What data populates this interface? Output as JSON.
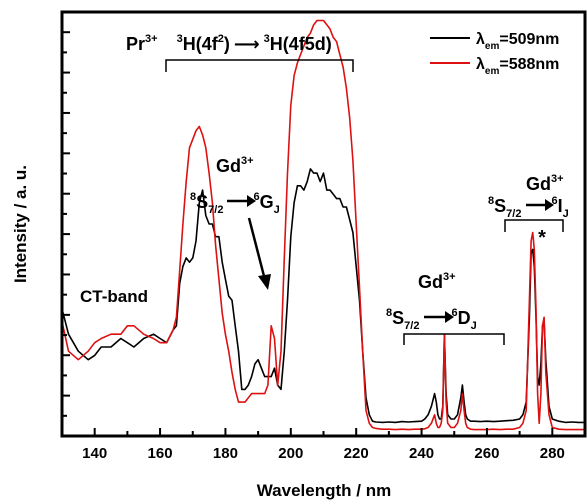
{
  "chart_data": {
    "type": "line",
    "xlabel": "Wavelength / nm",
    "ylabel": "Intensity / a. u.",
    "xlim": [
      130,
      290
    ],
    "ylim": [
      0,
      1
    ],
    "y_tick_labels_shown": false,
    "x_ticks": [
      140,
      160,
      180,
      200,
      220,
      240,
      260,
      280
    ],
    "grid": false,
    "legend_position": "top-right",
    "series": [
      {
        "name": "λem=509nm",
        "color": "#000000",
        "x": [
          130,
          132,
          135,
          138,
          140,
          142,
          145,
          148,
          150,
          152,
          155,
          158,
          160,
          162,
          164,
          165,
          166,
          167,
          168,
          169,
          170,
          171,
          172,
          173,
          174,
          175,
          176,
          177,
          178,
          179,
          180,
          181,
          182,
          183,
          184,
          185,
          186,
          187,
          188,
          189,
          190,
          191,
          192,
          193,
          194,
          195,
          196,
          197,
          198,
          199,
          200,
          201,
          202,
          203,
          204,
          205,
          206,
          207,
          208,
          209,
          210,
          211,
          212,
          213,
          214,
          215,
          216,
          217,
          218,
          219,
          220,
          221,
          222,
          223,
          224,
          225,
          226,
          228,
          230,
          232,
          234,
          236,
          238,
          240,
          241,
          242,
          243,
          244,
          244.5,
          245,
          245.5,
          246,
          246.5,
          247,
          247.5,
          248,
          249,
          250,
          251,
          252,
          252.5,
          253,
          253.5,
          254,
          255,
          256,
          258,
          260,
          262,
          264,
          266,
          268,
          270,
          271,
          272,
          273,
          273.5,
          274,
          274.5,
          275,
          275.5,
          276,
          276.5,
          277,
          277.5,
          278,
          279,
          280,
          282,
          284,
          286,
          288,
          290
        ],
        "values": [
          0.3,
          0.24,
          0.2,
          0.18,
          0.19,
          0.21,
          0.21,
          0.23,
          0.22,
          0.21,
          0.23,
          0.24,
          0.23,
          0.22,
          0.25,
          0.26,
          0.36,
          0.4,
          0.42,
          0.41,
          0.42,
          0.46,
          0.55,
          0.58,
          0.52,
          0.5,
          0.5,
          0.47,
          0.47,
          0.41,
          0.37,
          0.33,
          0.32,
          0.26,
          0.2,
          0.11,
          0.11,
          0.12,
          0.14,
          0.17,
          0.18,
          0.16,
          0.14,
          0.14,
          0.14,
          0.16,
          0.12,
          0.11,
          0.2,
          0.32,
          0.47,
          0.55,
          0.59,
          0.59,
          0.58,
          0.6,
          0.63,
          0.62,
          0.62,
          0.6,
          0.62,
          0.58,
          0.58,
          0.57,
          0.56,
          0.56,
          0.54,
          0.54,
          0.51,
          0.48,
          0.4,
          0.32,
          0.2,
          0.09,
          0.05,
          0.035,
          0.033,
          0.032,
          0.033,
          0.032,
          0.034,
          0.033,
          0.034,
          0.035,
          0.04,
          0.05,
          0.07,
          0.1,
          0.08,
          0.05,
          0.04,
          0.04,
          0.07,
          0.24,
          0.1,
          0.05,
          0.04,
          0.04,
          0.05,
          0.09,
          0.12,
          0.08,
          0.05,
          0.04,
          0.035,
          0.035,
          0.034,
          0.035,
          0.034,
          0.035,
          0.036,
          0.037,
          0.04,
          0.05,
          0.08,
          0.28,
          0.43,
          0.44,
          0.4,
          0.28,
          0.14,
          0.12,
          0.17,
          0.26,
          0.27,
          0.18,
          0.07,
          0.04,
          0.035,
          0.032,
          0.033,
          0.032,
          0.032
        ]
      },
      {
        "name": "λem=588nm",
        "color": "#dd1111",
        "x": [
          130,
          132,
          135,
          138,
          140,
          142,
          145,
          148,
          150,
          152,
          155,
          158,
          160,
          162,
          164,
          165,
          166,
          167,
          168,
          169,
          170,
          171,
          172,
          173,
          174,
          175,
          176,
          177,
          178,
          179,
          180,
          181,
          182,
          183,
          184,
          185,
          186,
          187,
          188,
          189,
          190,
          191,
          192,
          193,
          194,
          195,
          196,
          197,
          198,
          199,
          200,
          201,
          202,
          203,
          204,
          205,
          206,
          207,
          208,
          209,
          210,
          211,
          212,
          213,
          214,
          215,
          216,
          217,
          218,
          219,
          220,
          221,
          222,
          223,
          224,
          225,
          226,
          228,
          230,
          232,
          234,
          236,
          238,
          240,
          241,
          242,
          243,
          244,
          244.5,
          245,
          245.5,
          246,
          246.5,
          247,
          247.5,
          248,
          249,
          250,
          251,
          252,
          252.5,
          253,
          253.5,
          254,
          255,
          256,
          258,
          260,
          262,
          264,
          266,
          268,
          270,
          271,
          272,
          273,
          273.5,
          274,
          274.5,
          275,
          275.5,
          276,
          276.5,
          277,
          277.5,
          278,
          279,
          280,
          282,
          284,
          286,
          288,
          290
        ],
        "values": [
          0.27,
          0.2,
          0.18,
          0.2,
          0.22,
          0.23,
          0.24,
          0.24,
          0.26,
          0.26,
          0.24,
          0.23,
          0.22,
          0.22,
          0.25,
          0.28,
          0.39,
          0.5,
          0.6,
          0.68,
          0.7,
          0.72,
          0.73,
          0.71,
          0.68,
          0.62,
          0.55,
          0.45,
          0.37,
          0.29,
          0.24,
          0.2,
          0.15,
          0.11,
          0.08,
          0.08,
          0.08,
          0.09,
          0.1,
          0.1,
          0.1,
          0.1,
          0.1,
          0.12,
          0.26,
          0.23,
          0.12,
          0.2,
          0.42,
          0.62,
          0.78,
          0.85,
          0.88,
          0.9,
          0.92,
          0.94,
          0.95,
          0.97,
          0.98,
          0.98,
          0.98,
          0.97,
          0.96,
          0.94,
          0.93,
          0.9,
          0.87,
          0.82,
          0.75,
          0.65,
          0.5,
          0.35,
          0.2,
          0.06,
          0.03,
          0.02,
          0.018,
          0.016,
          0.016,
          0.015,
          0.016,
          0.015,
          0.016,
          0.016,
          0.017,
          0.02,
          0.03,
          0.05,
          0.03,
          0.02,
          0.02,
          0.03,
          0.06,
          0.24,
          0.08,
          0.03,
          0.02,
          0.02,
          0.03,
          0.06,
          0.1,
          0.06,
          0.03,
          0.02,
          0.016,
          0.015,
          0.015,
          0.015,
          0.016,
          0.015,
          0.016,
          0.016,
          0.02,
          0.03,
          0.06,
          0.32,
          0.46,
          0.48,
          0.44,
          0.3,
          0.1,
          0.03,
          0.1,
          0.26,
          0.28,
          0.15,
          0.05,
          0.02,
          0.016,
          0.015,
          0.015,
          0.015,
          0.015
        ]
      }
    ],
    "legend": [
      {
        "label_base": "λ",
        "label_sub": "em",
        "label_rest": "=509nm",
        "color": "#000000"
      },
      {
        "label_base": "λ",
        "label_sub": "em",
        "label_rest": "=588nm",
        "color": "#dd1111"
      }
    ],
    "annotations": {
      "pr_ion": "Pr",
      "pr_charge": "3+",
      "pr_from_pre": "H(4f",
      "pr_from_sup_mult": "3",
      "pr_from_exp": "2",
      "pr_from_post": ")",
      "pr_arrow": "⟶",
      "pr_to_sup_mult": "3",
      "pr_to": "H(4f5d)",
      "ct_band": "CT-band",
      "gd_ion": "Gd",
      "gd_charge": "3+",
      "gd1_from_sup": "8",
      "gd1_from": "S",
      "gd1_from_sub": "7/2",
      "gd1_to_sup": "6",
      "gd1_to": "G",
      "gd1_to_sub": "J",
      "gd2_from_sup": "8",
      "gd2_from": "S",
      "gd2_from_sub": "7/2",
      "gd2_to_sup": "6",
      "gd2_to": "D",
      "gd2_to_sub": "J",
      "gd3_from_sup": "8",
      "gd3_from": "S",
      "gd3_from_sub": "7/2",
      "gd3_to_sup": "6",
      "gd3_to": "I",
      "gd3_to_sub": "J",
      "star": "*"
    }
  }
}
